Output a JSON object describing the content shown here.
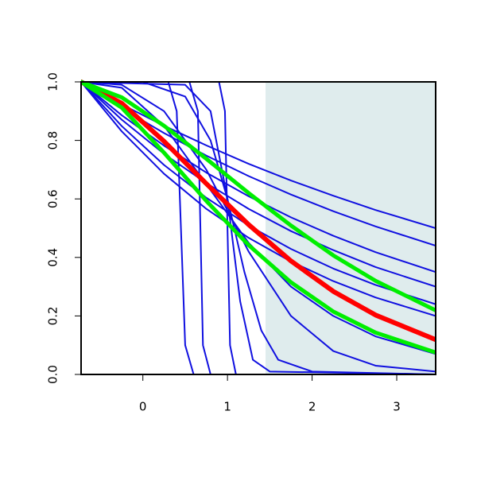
{
  "chart_data": {
    "type": "line",
    "xlim": [
      -0.73,
      3.46
    ],
    "ylim": [
      0,
      1
    ],
    "xticks": [
      0,
      1,
      2,
      3
    ],
    "yticks": [
      {
        "value": 0,
        "label": "0.0"
      },
      0.2,
      0.4,
      0.6,
      0.8,
      {
        "value": 1,
        "label": "1.0"
      }
    ],
    "shaded_region": {
      "x": [
        1.45,
        3.46
      ],
      "color": "#dfeced"
    },
    "series": [
      {
        "color": "#1010e0",
        "width": 2,
        "x": [
          -0.73,
          -0.25,
          0.25,
          0.75,
          1.25,
          1.75,
          2.25,
          2.75,
          3.46
        ],
        "values": [
          1,
          0.923,
          0.85,
          0.783,
          0.72,
          0.663,
          0.611,
          0.562,
          0.5
        ]
      },
      {
        "color": "#1010e0",
        "width": 2,
        "x": [
          -0.73,
          -0.25,
          0.25,
          0.75,
          1.25,
          1.75,
          2.25,
          2.75,
          3.46
        ],
        "values": [
          1,
          0.91,
          0.825,
          0.748,
          0.678,
          0.615,
          0.558,
          0.506,
          0.44
        ]
      },
      {
        "color": "#1010e0",
        "width": 2,
        "x": [
          -0.73,
          -0.25,
          0.25,
          0.75,
          1.25,
          1.75,
          2.25,
          2.75,
          3.46
        ],
        "values": [
          1,
          0.886,
          0.782,
          0.69,
          0.609,
          0.537,
          0.474,
          0.418,
          0.35
        ]
      },
      {
        "color": "#1010e0",
        "width": 2,
        "x": [
          -0.73,
          -0.25,
          0.25,
          0.75,
          1.25,
          1.75,
          2.25,
          2.75,
          3.46
        ],
        "values": [
          1,
          0.871,
          0.754,
          0.654,
          0.566,
          0.49,
          0.425,
          0.367,
          0.3
        ]
      },
      {
        "color": "#1010e0",
        "width": 2,
        "x": [
          -0.73,
          -0.25,
          0.25,
          0.75,
          1.25,
          1.75,
          2.25,
          2.75,
          3.46
        ],
        "values": [
          1,
          0.849,
          0.716,
          0.604,
          0.509,
          0.429,
          0.362,
          0.306,
          0.24
        ]
      },
      {
        "color": "#1010e0",
        "width": 2,
        "x": [
          -0.73,
          -0.25,
          0.25,
          0.75,
          1.25,
          1.75,
          2.25,
          2.75,
          3.46
        ],
        "values": [
          1,
          0.831,
          0.686,
          0.566,
          0.467,
          0.386,
          0.319,
          0.263,
          0.2
        ]
      },
      {
        "color": "#1010e0",
        "width": 2,
        "x": [
          -0.73,
          -0.25,
          0.25,
          0.75,
          1.25,
          1.75,
          2.25,
          2.75,
          3.46
        ],
        "values": [
          1,
          0.99,
          0.9,
          0.7,
          0.42,
          0.2,
          0.08,
          0.03,
          0.01
        ]
      },
      {
        "color": "#1010e0",
        "width": 2,
        "x": [
          -0.73,
          -0.25,
          0.25,
          0.75,
          1.25,
          1.75,
          2.25,
          2.75,
          3.46
        ],
        "values": [
          1,
          0.98,
          0.85,
          0.65,
          0.45,
          0.3,
          0.2,
          0.13,
          0.07
        ]
      },
      {
        "color": "#1010e0",
        "width": 2,
        "x": [
          -0.73,
          0.3,
          0.4,
          0.45,
          0.5,
          0.6,
          3.46
        ],
        "values": [
          1,
          1,
          0.9,
          0.5,
          0.1,
          0,
          0
        ]
      },
      {
        "color": "#1010e0",
        "width": 2,
        "x": [
          -0.73,
          0.55,
          0.65,
          0.68,
          0.71,
          0.8,
          3.46
        ],
        "values": [
          1,
          1,
          0.9,
          0.5,
          0.1,
          0,
          0
        ]
      },
      {
        "color": "#1010e0",
        "width": 2,
        "x": [
          -0.73,
          0.9,
          0.97,
          1.0,
          1.03,
          1.1,
          3.46
        ],
        "values": [
          1,
          1,
          0.9,
          0.5,
          0.1,
          0,
          0
        ]
      },
      {
        "color": "#1010e0",
        "width": 2,
        "x": [
          -0.73,
          0.5,
          0.8,
          1.0,
          1.15,
          1.3,
          1.5,
          3.46
        ],
        "values": [
          1,
          0.99,
          0.9,
          0.6,
          0.25,
          0.05,
          0.01,
          0
        ]
      },
      {
        "color": "#1010e0",
        "width": 2,
        "x": [
          -0.73,
          0,
          0.5,
          0.8,
          1.0,
          1.2,
          1.4,
          1.6,
          2,
          3.46
        ],
        "values": [
          1,
          1,
          0.95,
          0.8,
          0.6,
          0.35,
          0.15,
          0.05,
          0.01,
          0
        ]
      },
      {
        "color": "#ff0000",
        "width": 6,
        "x": [
          -0.73,
          -0.25,
          0.25,
          0.75,
          1.25,
          1.75,
          2.25,
          2.75,
          3.46
        ],
        "values": [
          1,
          0.927,
          0.797,
          0.652,
          0.512,
          0.388,
          0.284,
          0.203,
          0.119
        ]
      },
      {
        "color": "#00ee00",
        "width": 5,
        "x": [
          -0.73,
          -0.25,
          0.25,
          0.75,
          1.25,
          1.75,
          2.25,
          2.75,
          3.46
        ],
        "values": [
          1,
          0.912,
          0.758,
          0.593,
          0.442,
          0.315,
          0.215,
          0.143,
          0.075
        ]
      },
      {
        "color": "#00ee00",
        "width": 5,
        "x": [
          -0.73,
          -0.25,
          0.25,
          0.75,
          1.25,
          1.75,
          2.25,
          2.75,
          3.46
        ],
        "values": [
          1,
          0.947,
          0.85,
          0.737,
          0.62,
          0.509,
          0.407,
          0.32,
          0.219
        ]
      }
    ]
  }
}
